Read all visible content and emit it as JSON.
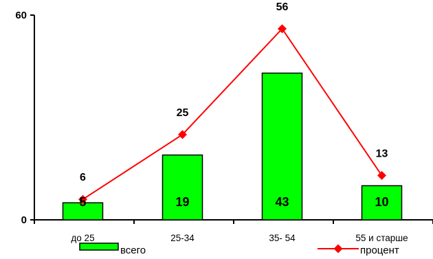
{
  "chart_data": {
    "type": "bar",
    "title": "",
    "xlabel": "",
    "ylabel": "",
    "categories": [
      "до 25",
      "25-34",
      "35- 54",
      "55 и старше"
    ],
    "ylim": [
      0,
      60
    ],
    "y_ticks": [
      "0",
      "60"
    ],
    "grid": false,
    "legend_position": "bottom",
    "series": [
      {
        "name": "всего",
        "type": "bar",
        "color": "#00ff00",
        "values": [
          5,
          19,
          43,
          10
        ]
      },
      {
        "name": "процент",
        "type": "line",
        "color": "#ff0000",
        "marker": "diamond",
        "values": [
          6,
          25,
          56,
          13
        ]
      }
    ]
  }
}
